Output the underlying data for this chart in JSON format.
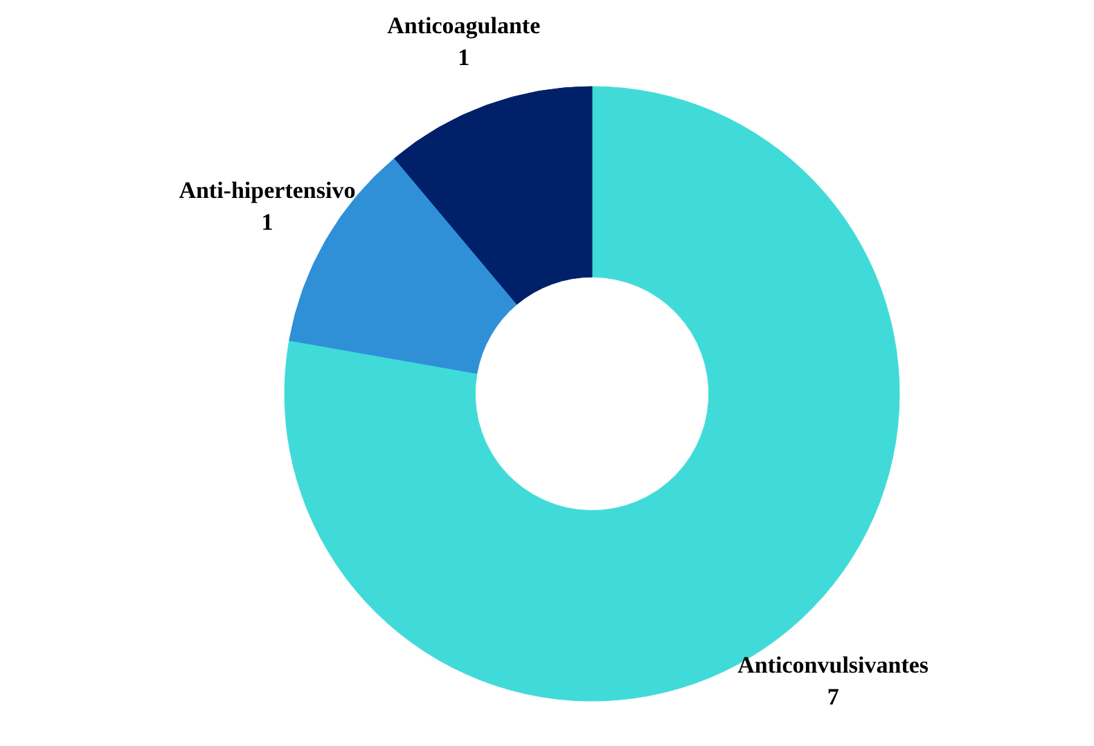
{
  "chart_data": {
    "type": "donut",
    "categories": [
      "Anticonvulsivantes",
      "Anti-hipertensivo",
      "Anticoagulante"
    ],
    "values": [
      7,
      1,
      1
    ],
    "colors": [
      "#40dbd8",
      "#2f90d8",
      "#002069"
    ],
    "data_labels": true,
    "legend": false
  }
}
